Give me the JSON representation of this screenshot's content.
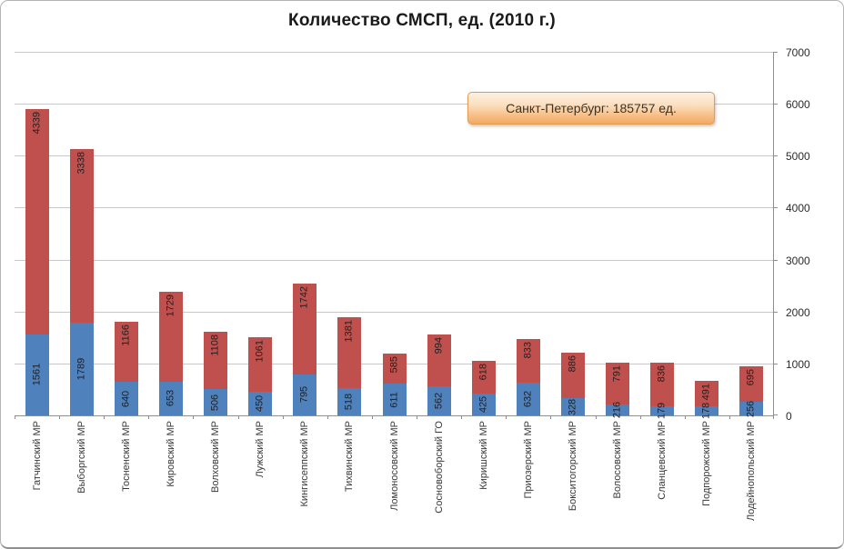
{
  "title": "Количество СМСП, ед. (2010 г.)",
  "callout": {
    "text": "Санкт-Петербург: 185757 ед."
  },
  "colors": {
    "bar_blue": "#4f81bd",
    "bar_red": "#c0504d",
    "gridline": "#c9c9c9",
    "axis": "#8e8e8e",
    "callout_border": "#dd9d52",
    "callout_fill_top": "#fdf0e0",
    "callout_fill_bottom": "#f3a95f"
  },
  "chart_data": {
    "type": "bar",
    "stacked": true,
    "title": "Количество СМСП, ед. (2010 г.)",
    "xlabel": "",
    "ylabel": "",
    "axis_side": "right",
    "ylim": [
      0,
      7000
    ],
    "ytick_interval": 1000,
    "yticks": [
      0,
      1000,
      2000,
      3000,
      4000,
      5000,
      6000,
      7000
    ],
    "grid": true,
    "legend": "none",
    "value_labels": true,
    "annotation": "Санкт-Петербург: 185757 ед.",
    "categories": [
      "Гатчинский МР",
      "Выборгский МР",
      "Тосненский МР",
      "Кировский МР",
      "Волховский МР",
      "Лужский МР",
      "Кингисеппский МР",
      "Тихвинский МР",
      "Ломоносовский МР",
      "Сосновоборский ГО",
      "Киришский МР",
      "Приозерский МР",
      "Бокситогорский МР",
      "Волосовский МР",
      "Сланцевский МР",
      "Подпорожский МР",
      "Лодейнопольский МР"
    ],
    "series": [
      {
        "name": "series-blue",
        "color": "#4f81bd",
        "values": [
          1561,
          1789,
          640,
          653,
          506,
          450,
          795,
          518,
          611,
          562,
          425,
          632,
          328,
          216,
          179,
          178,
          256
        ]
      },
      {
        "name": "series-red",
        "color": "#c0504d",
        "values": [
          4339,
          3338,
          1166,
          1729,
          1108,
          1061,
          1742,
          1381,
          585,
          994,
          618,
          833,
          886,
          791,
          836,
          491,
          695
        ]
      }
    ]
  }
}
